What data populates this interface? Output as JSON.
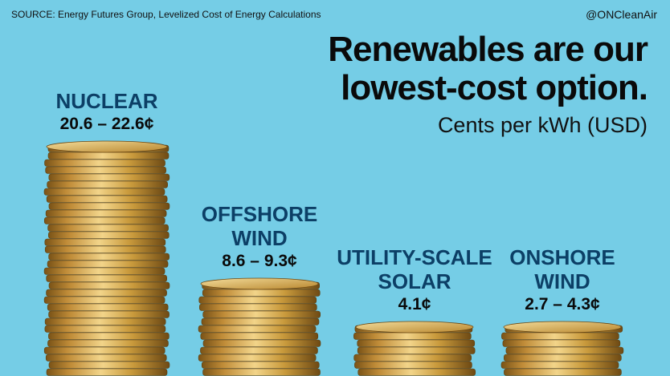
{
  "header": {
    "source": "SOURCE:  Energy Futures Group, Levelized Cost of Energy Calculations",
    "handle": "@ONCleanAir"
  },
  "colors": {
    "background": "#75cde6",
    "category_text": "#0c3f66",
    "coin_gold": "#c99a3c"
  },
  "chart_data": {
    "type": "bar",
    "title": "Renewables are our lowest-cost option.",
    "subtitle": "Cents per kWh (USD)",
    "categories": [
      "NUCLEAR",
      "OFFSHORE WIND",
      "UTILITY-SCALE SOLAR",
      "ONSHORE WIND"
    ],
    "category_lines": [
      [
        "NUCLEAR"
      ],
      [
        "OFFSHORE",
        "WIND"
      ],
      [
        "UTILITY-SCALE",
        "SOLAR"
      ],
      [
        "ONSHORE",
        "WIND"
      ]
    ],
    "value_labels": [
      "20.6 – 22.6¢",
      "8.6 – 9.3¢",
      "4.1¢",
      "2.7 – 4.3¢"
    ],
    "ranges": [
      [
        20.6,
        22.6
      ],
      [
        8.6,
        9.3
      ],
      [
        4.1,
        4.1
      ],
      [
        2.7,
        4.3
      ]
    ],
    "unit": "¢ per kWh"
  }
}
